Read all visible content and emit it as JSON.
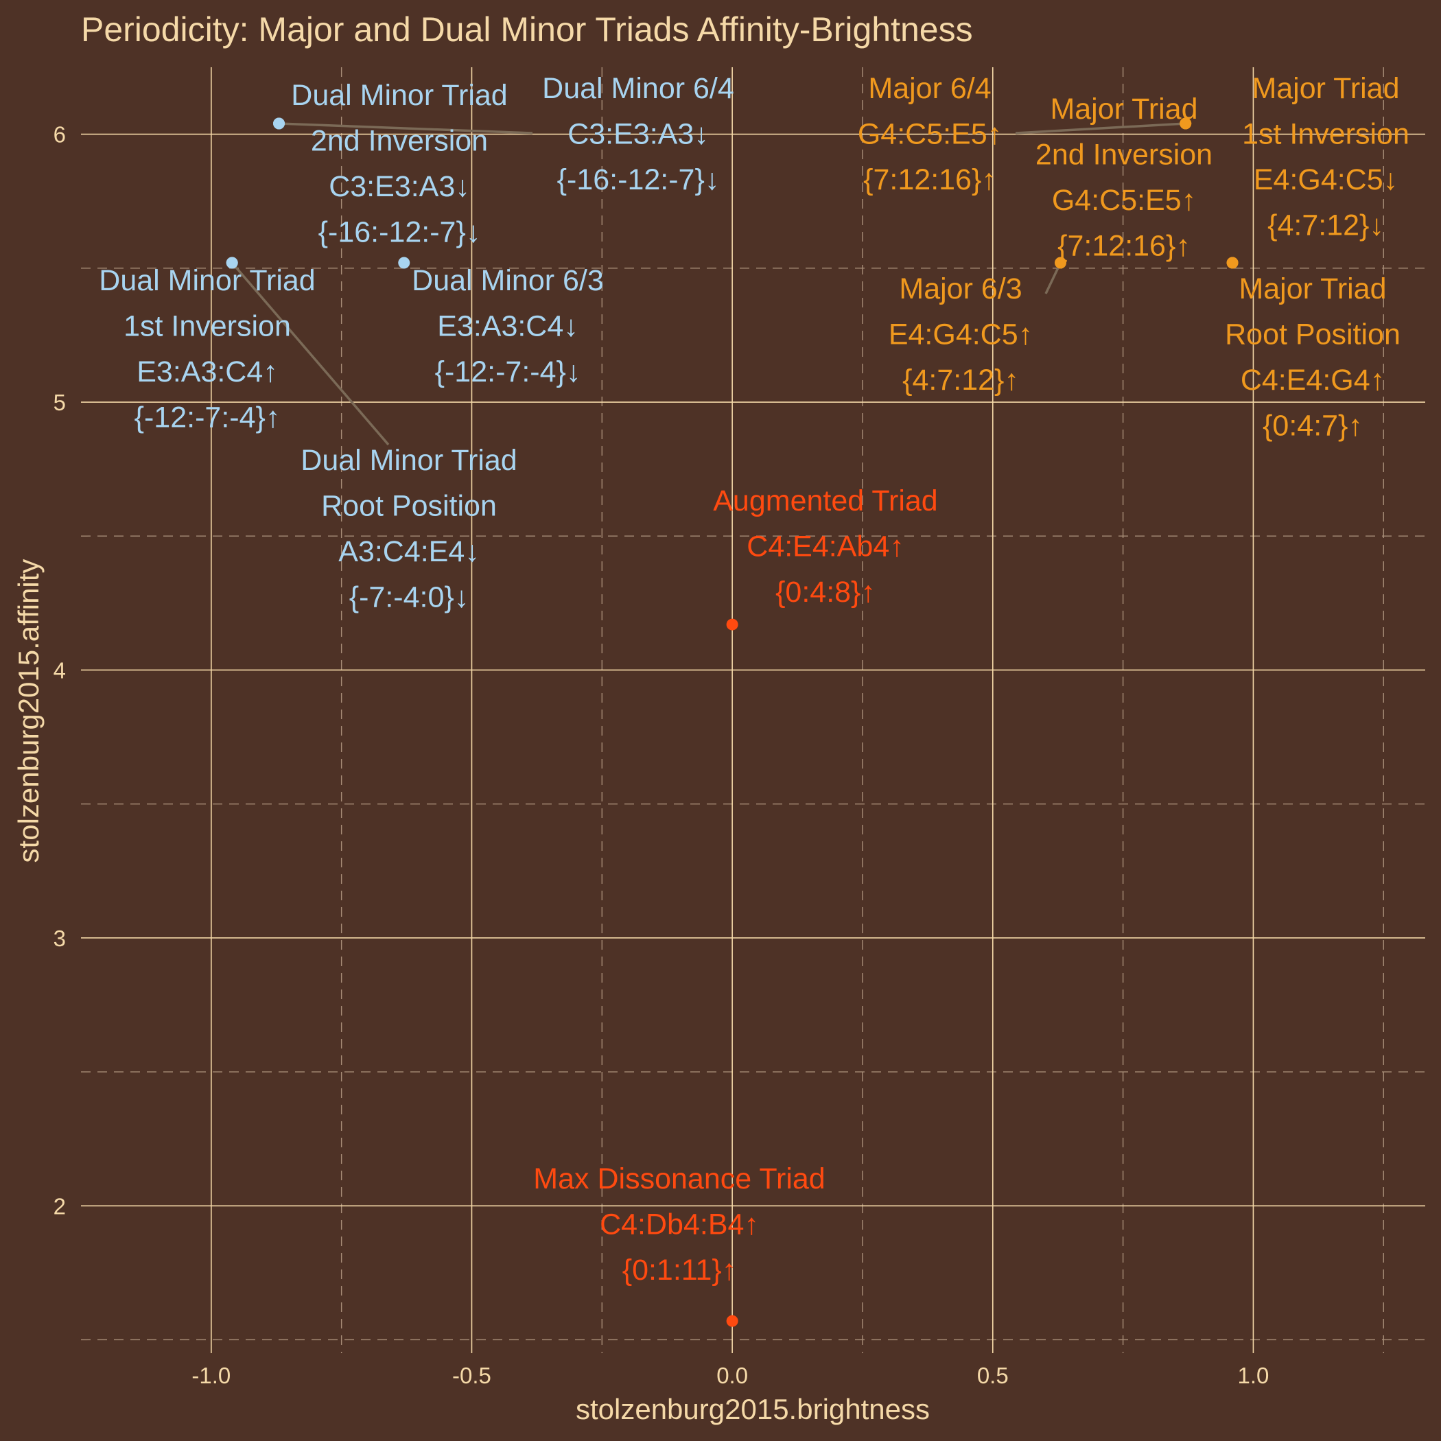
{
  "chart_data": {
    "type": "scatter",
    "title": "Periodicity: Major and Dual Minor Triads Affinity-Brightness",
    "xlabel": "stolzenburg2015.brightness",
    "ylabel": "stolzenburg2015.affinity",
    "xlim": [
      -1.25,
      1.33
    ],
    "ylim": [
      1.45,
      6.25
    ],
    "x_ticks": [
      -1.0,
      -0.5,
      0.0,
      0.5,
      1.0
    ],
    "x_tick_labels": [
      "-1.0",
      "-0.5",
      "0.0",
      "0.5",
      "1.0"
    ],
    "y_ticks": [
      2,
      3,
      4,
      5,
      6
    ],
    "y_tick_labels": [
      "2",
      "3",
      "4",
      "5",
      "6"
    ],
    "grid": true,
    "colors": {
      "background": "#4e3226",
      "major": "#f0991e",
      "dual_minor": "#a8d4f0",
      "neutral": "#ff4a10",
      "text": "#f5d9a8",
      "segment": "#7b6a57"
    },
    "points": [
      {
        "x": -0.96,
        "y": 5.52,
        "color_key": "dual_minor",
        "lines": [
          "Dual Minor Triad",
          "1st Inversion",
          "E3:A3:C4↑",
          "{-12:-7:-4}↑"
        ]
      },
      {
        "x": -0.87,
        "y": 6.04,
        "color_key": "dual_minor",
        "lines": [
          "Dual Minor Triad",
          "2nd Inversion",
          "C3:E3:A3↓",
          "{-16:-12:-7}↓"
        ]
      },
      {
        "x": -0.63,
        "y": 5.52,
        "color_key": "dual_minor",
        "lines": [
          "Dual Minor 6/3",
          "E3:A3:C4↓",
          "{-12:-7:-4}↓"
        ]
      },
      {
        "x": -0.87,
        "y": 6.04,
        "color_key": "dual_minor",
        "lines": [
          "Dual Minor 6/4",
          "C3:E3:A3↓",
          "{-16:-12:-7}↓"
        ]
      },
      {
        "x": -0.96,
        "y": 5.52,
        "color_key": "dual_minor",
        "lines": [
          "Dual Minor Triad",
          "Root Position",
          "A3:C4:E4↓",
          "{-7:-4:0}↓"
        ]
      },
      {
        "x": 0.0,
        "y": 4.17,
        "color_key": "neutral",
        "lines": [
          "Augmented Triad",
          "C4:E4:Ab4↑",
          "{0:4:8}↑"
        ]
      },
      {
        "x": 0.0,
        "y": 1.57,
        "color_key": "neutral",
        "lines": [
          "Max Dissonance Triad",
          "C4:Db4:B4↑",
          "{0:1:11}↑"
        ]
      },
      {
        "x": 0.87,
        "y": 6.04,
        "color_key": "major",
        "lines": [
          "Major 6/4",
          "G4:C5:E5↑",
          "{7:12:16}↑"
        ]
      },
      {
        "x": 0.87,
        "y": 6.04,
        "color_key": "major",
        "lines": [
          "Major Triad",
          "2nd Inversion",
          "G4:C5:E5↑",
          "{7:12:16}↑"
        ]
      },
      {
        "x": 0.63,
        "y": 5.52,
        "color_key": "major",
        "lines": [
          "Major 6/3",
          "E4:G4:C5↑",
          "{4:7:12}↑"
        ]
      },
      {
        "x": 0.96,
        "y": 5.52,
        "color_key": "major",
        "lines": [
          "Major Triad",
          "1st Inversion",
          "E4:G4:C5↓",
          "{4:7:12}↓"
        ]
      },
      {
        "x": 0.96,
        "y": 5.52,
        "color_key": "major",
        "lines": [
          "Major Triad",
          "Root Position",
          "C4:E4:G4↑",
          "{0:4:7}↑"
        ]
      }
    ]
  }
}
